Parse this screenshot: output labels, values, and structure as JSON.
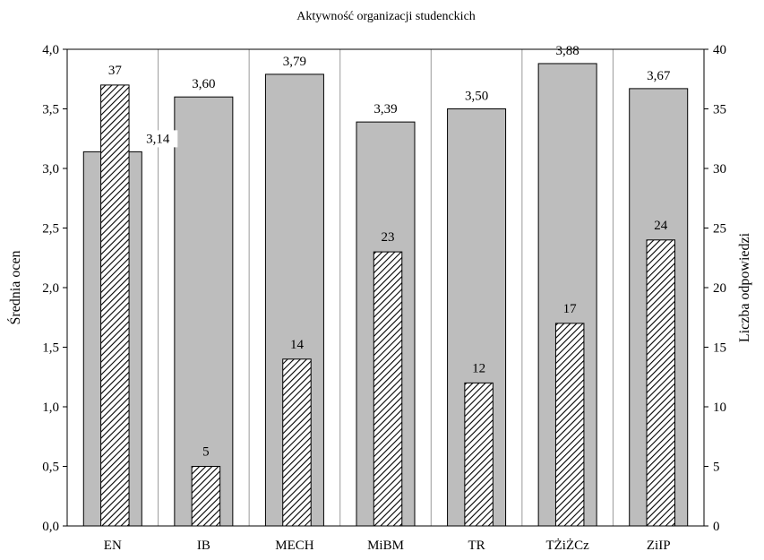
{
  "chart_data": {
    "type": "bar",
    "title": "Aktywność organizacji studenckich",
    "categories": [
      "EN",
      "IB",
      "MECH",
      "MiBM",
      "TR",
      "TŻiŻCz",
      "ZiIP"
    ],
    "series": [
      {
        "axis": "left",
        "color": "#bdbdbd",
        "fill_style": "solid",
        "values": [
          3.14,
          3.6,
          3.79,
          3.39,
          3.5,
          3.88,
          3.67
        ],
        "value_labels": [
          "3,14",
          "3,60",
          "3,79",
          "3,39",
          "3,50",
          "3,88",
          "3,67"
        ]
      },
      {
        "axis": "right",
        "color": "#000000",
        "fill_style": "diagonal-hatch",
        "values": [
          37,
          5,
          14,
          23,
          12,
          17,
          24
        ],
        "value_labels": [
          "37",
          "5",
          "14",
          "23",
          "12",
          "17",
          "24"
        ]
      }
    ],
    "ylabel": "Średnia ocen",
    "ylim": [
      0,
      4
    ],
    "yticks": [
      "0,0",
      "0,5",
      "1,0",
      "1,5",
      "2,0",
      "2,5",
      "3,0",
      "3,5",
      "4,0"
    ],
    "y2label": "Liczba odpowiedzi",
    "y2lim": [
      0,
      40
    ],
    "y2ticks": [
      "0",
      "5",
      "10",
      "15",
      "20",
      "25",
      "30",
      "35",
      "40"
    ],
    "grid": "vertical",
    "legend": "none"
  }
}
